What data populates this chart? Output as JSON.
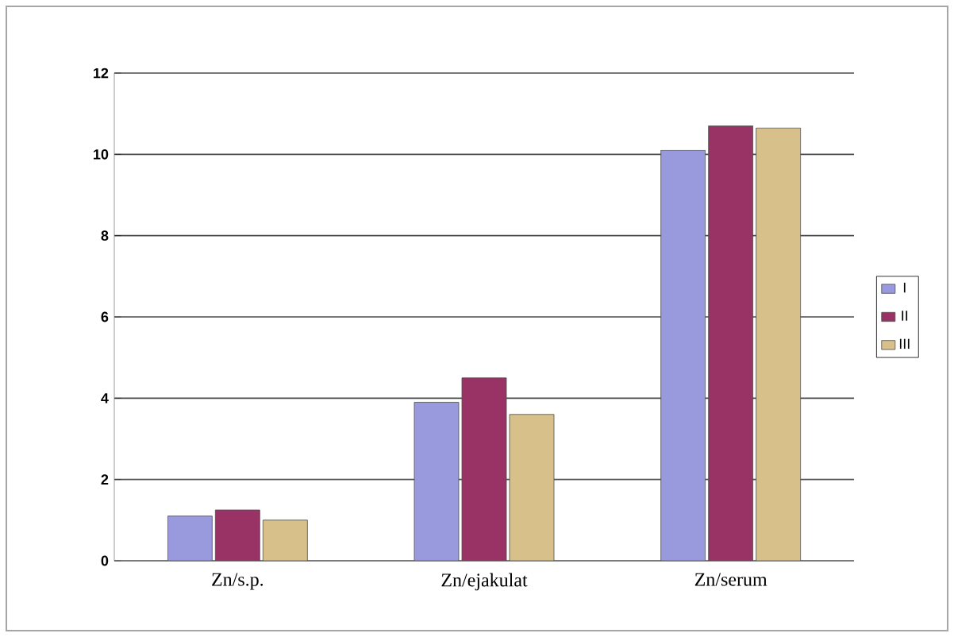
{
  "chart_data": {
    "type": "bar",
    "categories": [
      "Zn/s.p.",
      "Zn/ejakulat",
      "Zn/serum"
    ],
    "series": [
      {
        "name": "I",
        "color": "#9999dd",
        "values": [
          1.1,
          3.9,
          10.1
        ]
      },
      {
        "name": "II",
        "color": "#993366",
        "values": [
          1.25,
          4.5,
          10.7
        ]
      },
      {
        "name": "III",
        "color": "#d8c08a",
        "values": [
          1.0,
          3.6,
          10.65
        ]
      }
    ],
    "ylim": [
      0,
      12
    ],
    "yticks": [
      0,
      2,
      4,
      6,
      8,
      10,
      12
    ],
    "grid": "y",
    "legend": "right"
  }
}
